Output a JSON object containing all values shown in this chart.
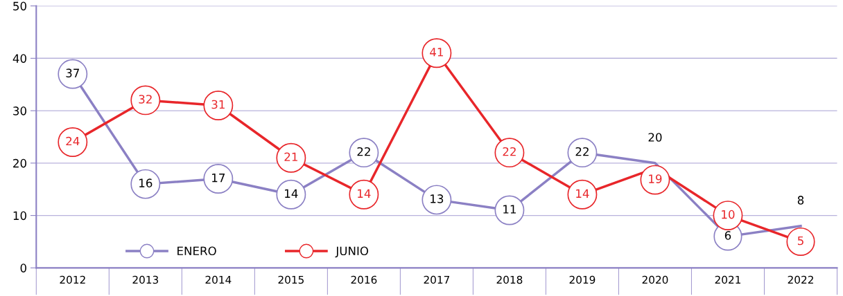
{
  "chart_data": {
    "type": "line",
    "categories": [
      "2012",
      "2013",
      "2014",
      "2015",
      "2016",
      "2017",
      "2018",
      "2019",
      "2020",
      "2021",
      "2022"
    ],
    "series": [
      {
        "name": "ENERO",
        "color": "#8b80c4",
        "values": [
          37,
          16,
          17,
          14,
          22,
          13,
          11,
          22,
          20,
          6,
          8
        ]
      },
      {
        "name": "JUNIO",
        "color": "#e8262a",
        "values": [
          24,
          32,
          31,
          21,
          14,
          41,
          22,
          14,
          19,
          10,
          5
        ]
      }
    ],
    "ylim": [
      0,
      50
    ],
    "yticks": [
      0,
      10,
      20,
      30,
      40,
      50
    ],
    "grid": "y",
    "legend": "bottom left",
    "marker": "circle",
    "line_style": "solid",
    "data_labels": true
  }
}
